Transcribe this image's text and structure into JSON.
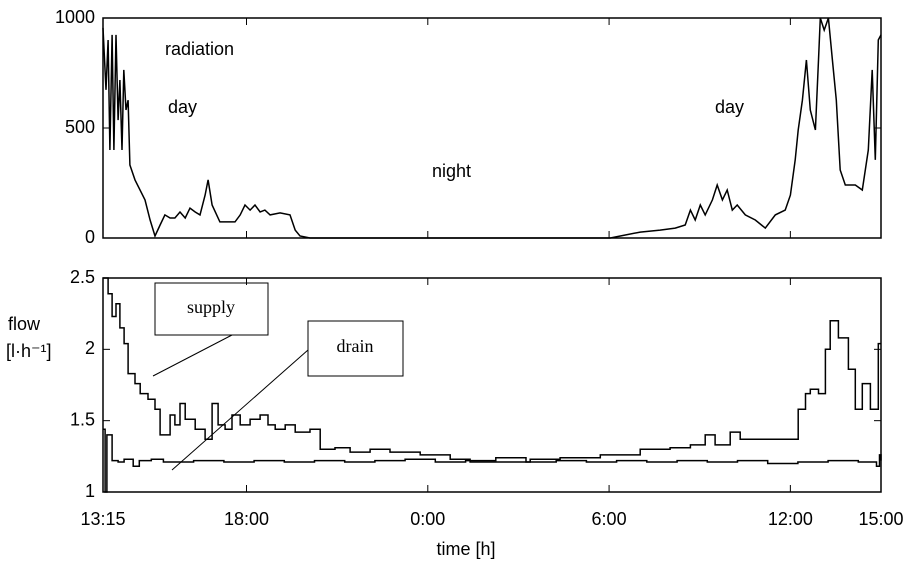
{
  "chart_data": [
    {
      "type": "line",
      "annotations": [
        "radiation",
        "day",
        "night",
        "day"
      ],
      "x": [
        0,
        0.1,
        0.17,
        0.23,
        0.3,
        0.36,
        0.43,
        0.5,
        0.56,
        0.63,
        0.69,
        0.76,
        0.83,
        0.89,
        1.06,
        1.39,
        1.56,
        1.72,
        1.89,
        2.05,
        2.22,
        2.38,
        2.55,
        2.72,
        2.88,
        3.05,
        3.21,
        3.38,
        3.48,
        3.61,
        3.87,
        4.37,
        4.54,
        4.7,
        4.87,
        5.03,
        5.2,
        5.36,
        5.53,
        5.86,
        6.19,
        6.36,
        6.52,
        6.85,
        16.79,
        17.12,
        17.78,
        18.44,
        18.94,
        19.27,
        19.44,
        19.6,
        19.77,
        19.93,
        20.17,
        20.33,
        20.5,
        20.66,
        20.83,
        20.99,
        21.26,
        21.59,
        21.92,
        22.25,
        22.58,
        22.75,
        22.91,
        23.01,
        23.15,
        23.28,
        23.41,
        23.58,
        23.68,
        23.74,
        23.87,
        24.01,
        24.14,
        24.27,
        24.4,
        24.57,
        24.9,
        25.13,
        25.33,
        25.46,
        25.56,
        25.66,
        25.75
      ],
      "values": [
        955,
        673,
        900,
        400,
        923,
        400,
        923,
        536,
        718,
        400,
        764,
        582,
        627,
        332,
        264,
        173,
        82,
        9,
        59,
        105,
        91,
        91,
        118,
        91,
        136,
        118,
        105,
        195,
        264,
        150,
        73,
        73,
        105,
        150,
        127,
        150,
        118,
        127,
        105,
        114,
        105,
        36,
        9,
        0,
        0,
        9,
        27,
        36,
        45,
        59,
        127,
        82,
        150,
        105,
        173,
        241,
        173,
        218,
        127,
        150,
        105,
        82,
        45,
        105,
        127,
        195,
        355,
        491,
        627,
        809,
        582,
        491,
        809,
        1000,
        945,
        1000,
        809,
        627,
        309,
        241,
        241,
        218,
        400,
        764,
        355,
        900,
        923
      ],
      "color": "#000000",
      "xlim": [
        0,
        25.75
      ],
      "ylim": [
        0,
        1000
      ],
      "yticks": [
        0,
        500,
        1000
      ]
    },
    {
      "type": "line",
      "step": true,
      "y_label": [
        "flow",
        "[l·h⁻¹]"
      ],
      "x_label": "time [h]",
      "xlim": [
        0,
        25.75
      ],
      "xticks": [
        {
          "value": 0,
          "label": "13:15"
        },
        {
          "value": 4.75,
          "label": "18:00"
        },
        {
          "value": 10.75,
          "label": "0:00"
        },
        {
          "value": 16.75,
          "label": "6:00"
        },
        {
          "value": 22.75,
          "label": "12:00"
        },
        {
          "value": 25.75,
          "label": "15:00"
        }
      ],
      "ylim": [
        1,
        2.5
      ],
      "yticks": [
        1,
        1.5,
        2,
        2.5
      ],
      "series": [
        {
          "name": "supply",
          "color": "#000000",
          "x": [
            0,
            0.17,
            0.3,
            0.43,
            0.56,
            0.7,
            0.83,
            1.06,
            1.23,
            1.49,
            1.72,
            1.89,
            2.22,
            2.38,
            2.55,
            2.72,
            3.05,
            3.38,
            3.61,
            3.81,
            4.04,
            4.27,
            4.54,
            4.87,
            5.2,
            5.46,
            5.7,
            6.03,
            6.36,
            6.85,
            7.19,
            7.68,
            8.18,
            8.84,
            9.5,
            10.5,
            11.49,
            12.15,
            13.15,
            14.14,
            15.13,
            16.46,
            17.78,
            18.77,
            19.44,
            19.93,
            20.26,
            20.76,
            21.09,
            21.75,
            22.75,
            23.01,
            23.25,
            23.41,
            23.68,
            23.91,
            24.07,
            24.34,
            24.67,
            24.9,
            25.13,
            25.4,
            25.66,
            25.75
          ],
          "values": [
            2.5,
            2.39,
            2.23,
            2.32,
            2.15,
            2.04,
            1.83,
            1.76,
            1.69,
            1.65,
            1.58,
            1.4,
            1.54,
            1.47,
            1.62,
            1.51,
            1.44,
            1.37,
            1.62,
            1.47,
            1.44,
            1.54,
            1.47,
            1.51,
            1.54,
            1.47,
            1.44,
            1.47,
            1.42,
            1.44,
            1.3,
            1.31,
            1.28,
            1.3,
            1.28,
            1.26,
            1.23,
            1.21,
            1.21,
            1.23,
            1.24,
            1.26,
            1.3,
            1.31,
            1.33,
            1.4,
            1.33,
            1.42,
            1.37,
            1.37,
            1.37,
            1.58,
            1.69,
            1.72,
            1.69,
            2.0,
            2.2,
            2.08,
            1.86,
            1.58,
            1.76,
            1.58,
            2.04,
            2.04
          ]
        },
        {
          "name": "drain",
          "color": "#000000",
          "x": [
            0,
            0.07,
            0.13,
            0.3,
            0.5,
            0.7,
            1.0,
            1.2,
            1.6,
            2.0,
            3.0,
            4.0,
            5.0,
            6.0,
            7.0,
            8.0,
            9.0,
            10.0,
            11.0,
            12.0,
            13.0,
            14.0,
            15.0,
            16.0,
            17.0,
            18.0,
            19.0,
            20.0,
            21.0,
            22.0,
            23.0,
            24.0,
            25.0,
            25.6,
            25.7,
            25.75
          ],
          "values": [
            1.44,
            1.0,
            1.4,
            1.22,
            1.21,
            1.23,
            1.18,
            1.22,
            1.23,
            1.21,
            1.22,
            1.21,
            1.22,
            1.21,
            1.22,
            1.21,
            1.22,
            1.23,
            1.21,
            1.22,
            1.24,
            1.21,
            1.22,
            1.21,
            1.22,
            1.21,
            1.22,
            1.21,
            1.22,
            1.2,
            1.21,
            1.22,
            1.21,
            1.18,
            1.26,
            1.22
          ]
        }
      ]
    }
  ]
}
